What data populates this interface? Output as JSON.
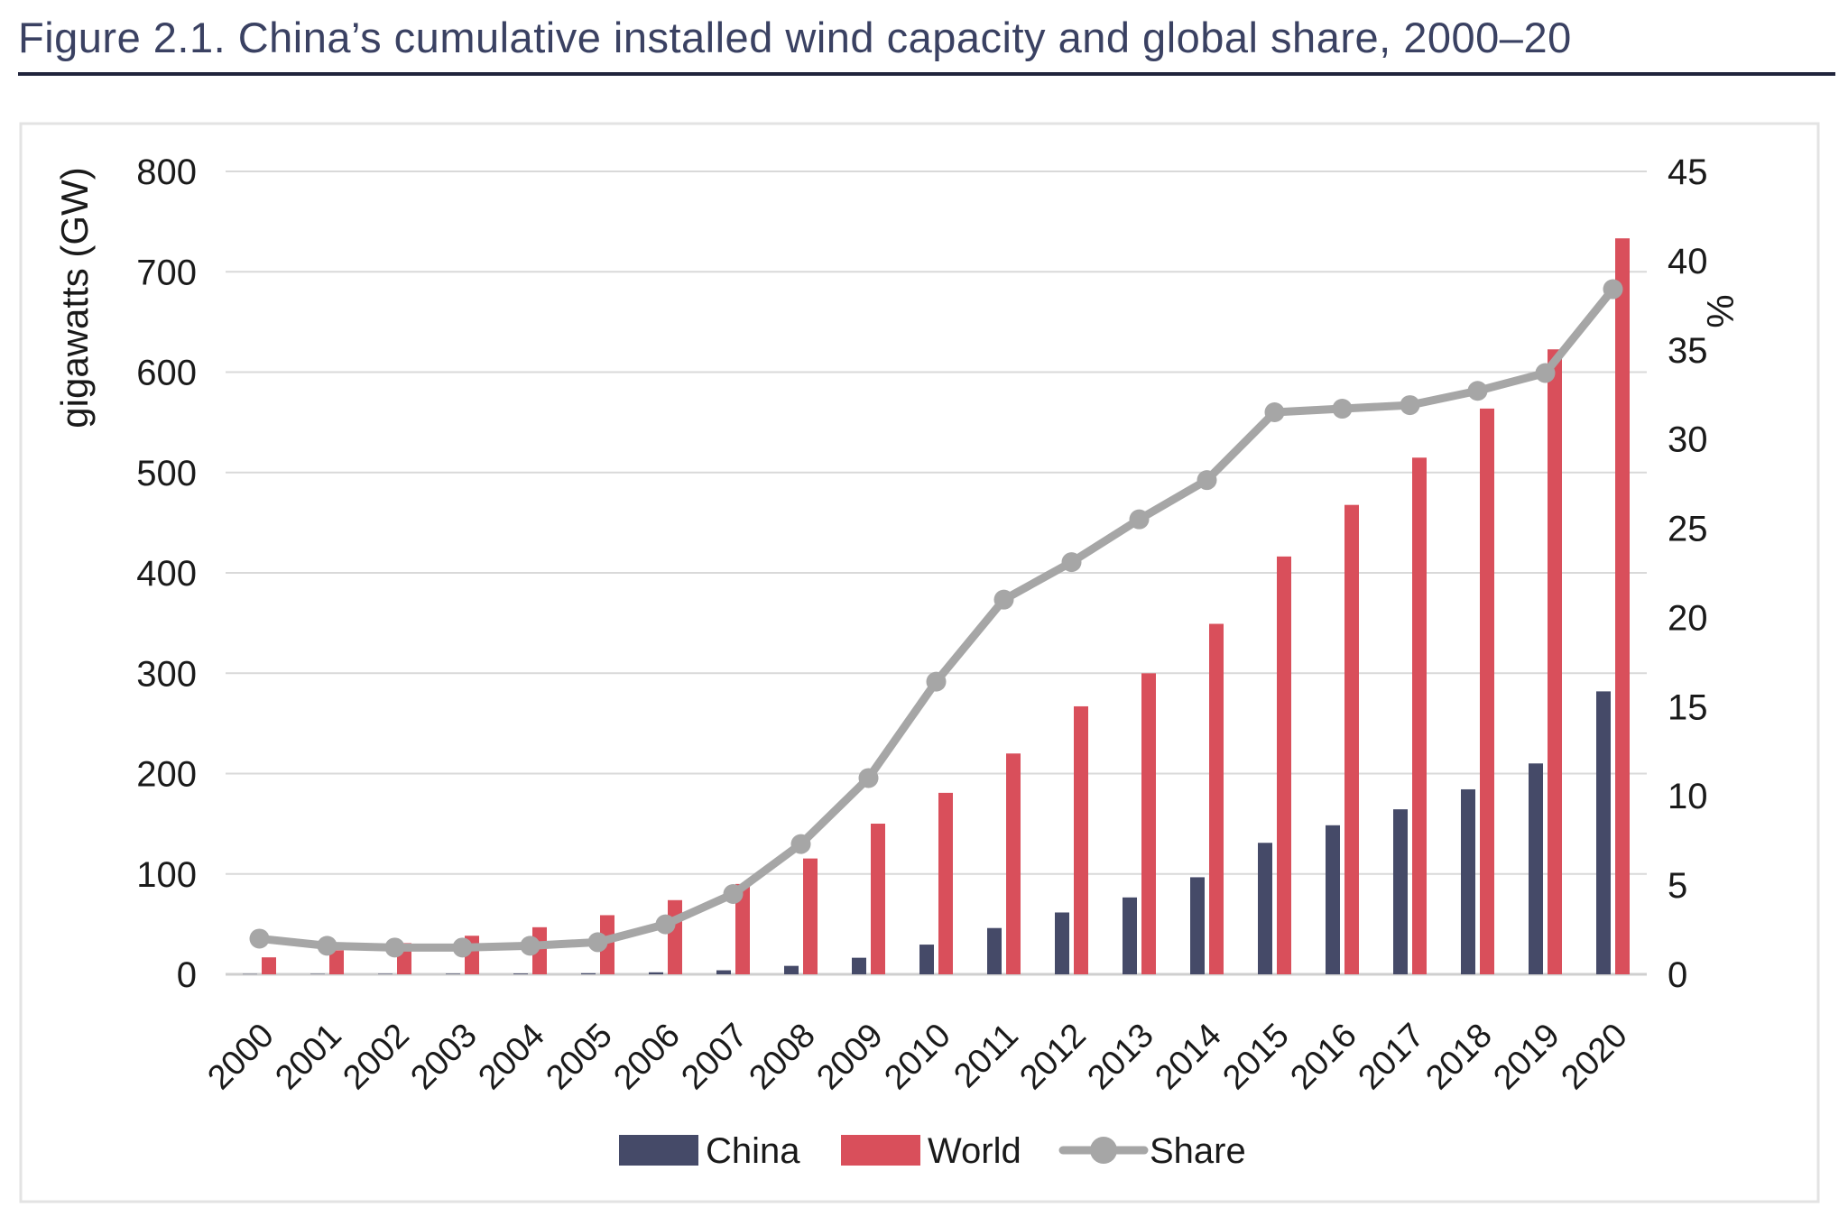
{
  "figure": {
    "title": "Figure 2.1. China’s cumulative installed wind capacity and global share, 2000–20"
  },
  "chart_data": {
    "type": "combo",
    "title": "Figure 2.1. China’s cumulative installed wind capacity and global share, 2000–20",
    "x": [
      "2000",
      "2001",
      "2002",
      "2003",
      "2004",
      "2005",
      "2006",
      "2007",
      "2008",
      "2009",
      "2010",
      "2011",
      "2012",
      "2013",
      "2014",
      "2015",
      "2016",
      "2017",
      "2018",
      "2019",
      "2020"
    ],
    "series": [
      {
        "name": "China",
        "type": "bar",
        "axis": "left",
        "color": "#454a68",
        "values": [
          0.3,
          0.4,
          0.5,
          0.6,
          0.8,
          1.1,
          2.0,
          4.0,
          8.4,
          16.5,
          29.6,
          46.1,
          61.6,
          76.6,
          96.7,
          131.0,
          148.5,
          164.4,
          184.3,
          210.1,
          281.9
        ]
      },
      {
        "name": "World",
        "type": "bar",
        "axis": "left",
        "color": "#d94f5b",
        "values": [
          16.9,
          23.9,
          31.1,
          38.4,
          46.9,
          58.9,
          73.9,
          90.0,
          115.4,
          150.1,
          180.8,
          220.0,
          267.0,
          299.9,
          349.2,
          416.3,
          467.7,
          514.8,
          563.7,
          622.7,
          733.3
        ]
      },
      {
        "name": "Share",
        "type": "line",
        "axis": "right",
        "color": "#a6a6a6",
        "values": [
          2.0,
          1.6,
          1.5,
          1.5,
          1.6,
          1.8,
          2.8,
          4.5,
          7.3,
          11.0,
          16.4,
          21.0,
          23.1,
          25.5,
          27.7,
          31.5,
          31.7,
          31.9,
          32.7,
          33.7,
          38.4
        ]
      }
    ],
    "left_axis": {
      "label": "gigawatts (GW)",
      "min": 0,
      "max": 800,
      "ticks": [
        0,
        100,
        200,
        300,
        400,
        500,
        600,
        700,
        800
      ]
    },
    "right_axis": {
      "label": "%",
      "min": 0,
      "max": 45,
      "ticks": [
        0,
        5,
        10,
        15,
        20,
        25,
        30,
        35,
        40,
        45
      ]
    },
    "xlabel": "",
    "grid": "horizontal",
    "gridline_color": "#d9d9d9",
    "axis_line_color": "#cfcfcf",
    "tick_label_color": "#1a1a1a",
    "legend_position": "bottom"
  },
  "legend": {
    "items": [
      {
        "label": "China",
        "marker": "rect",
        "color": "#454a68"
      },
      {
        "label": "World",
        "marker": "rect",
        "color": "#d94f5b"
      },
      {
        "label": "Share",
        "marker": "line-dot",
        "color": "#a6a6a6"
      }
    ]
  }
}
